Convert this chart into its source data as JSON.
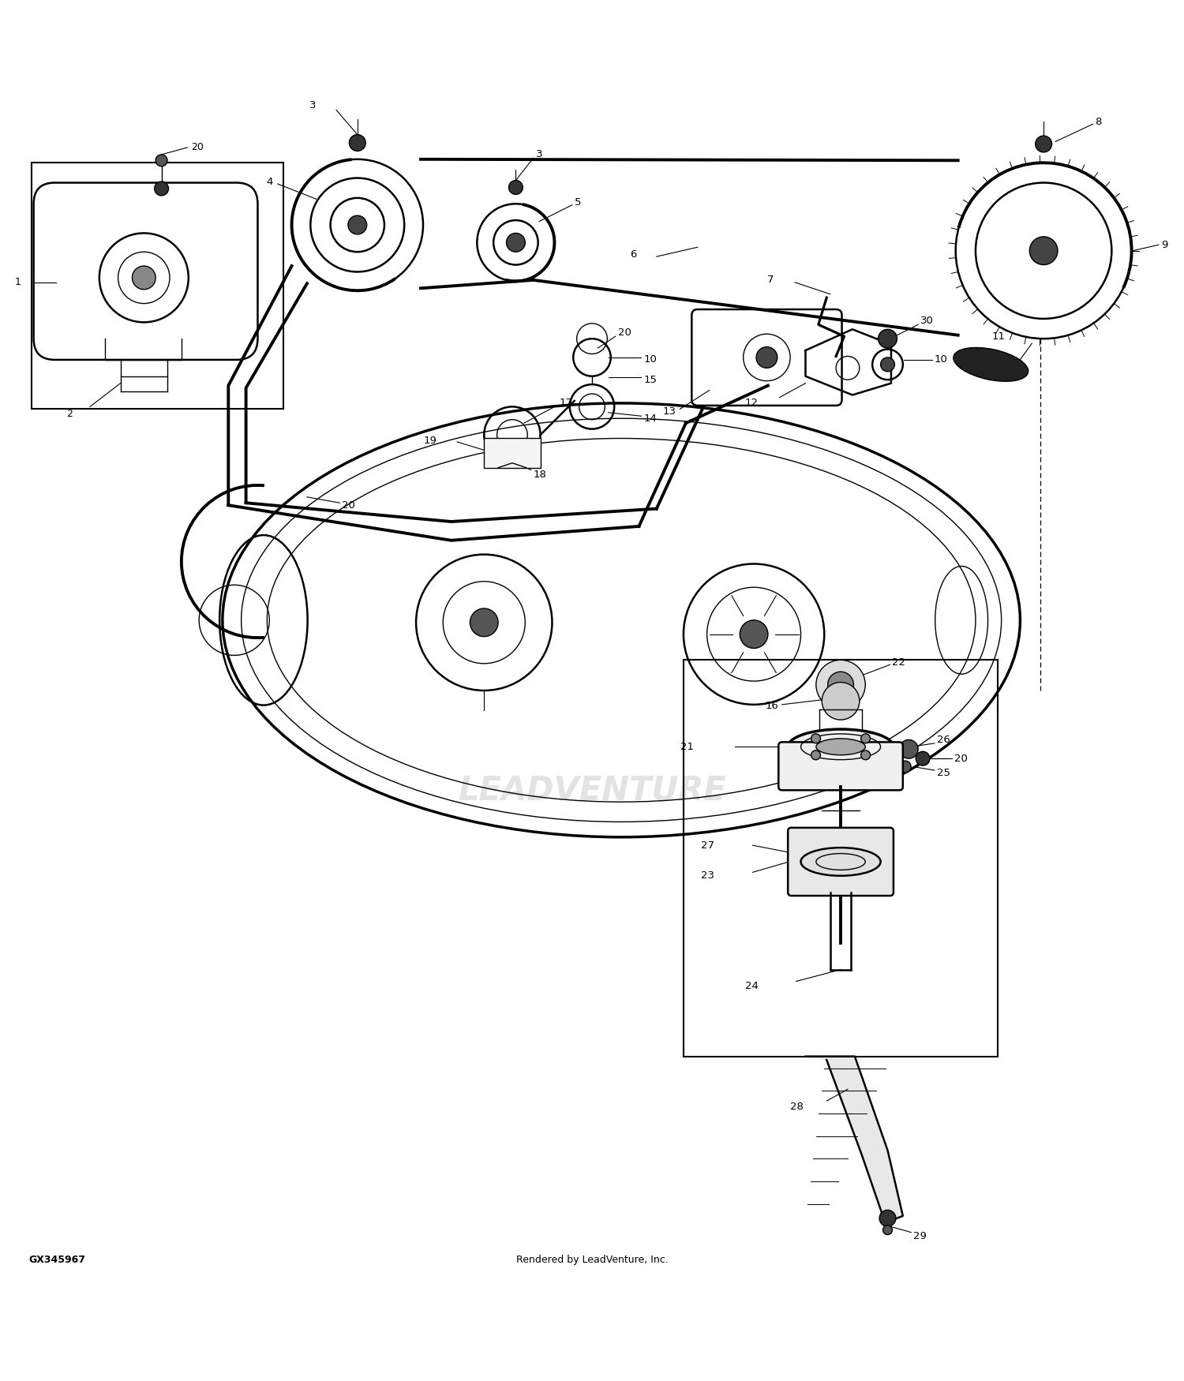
{
  "background_color": "#ffffff",
  "line_color": "#000000",
  "text_color": "#000000",
  "watermark": "LEADVENTURE",
  "footer_left": "GX345967",
  "footer_right": "Rendered by LeadVenture, Inc.",
  "figsize": [
    15.0,
    17.5
  ],
  "dpi": 100
}
